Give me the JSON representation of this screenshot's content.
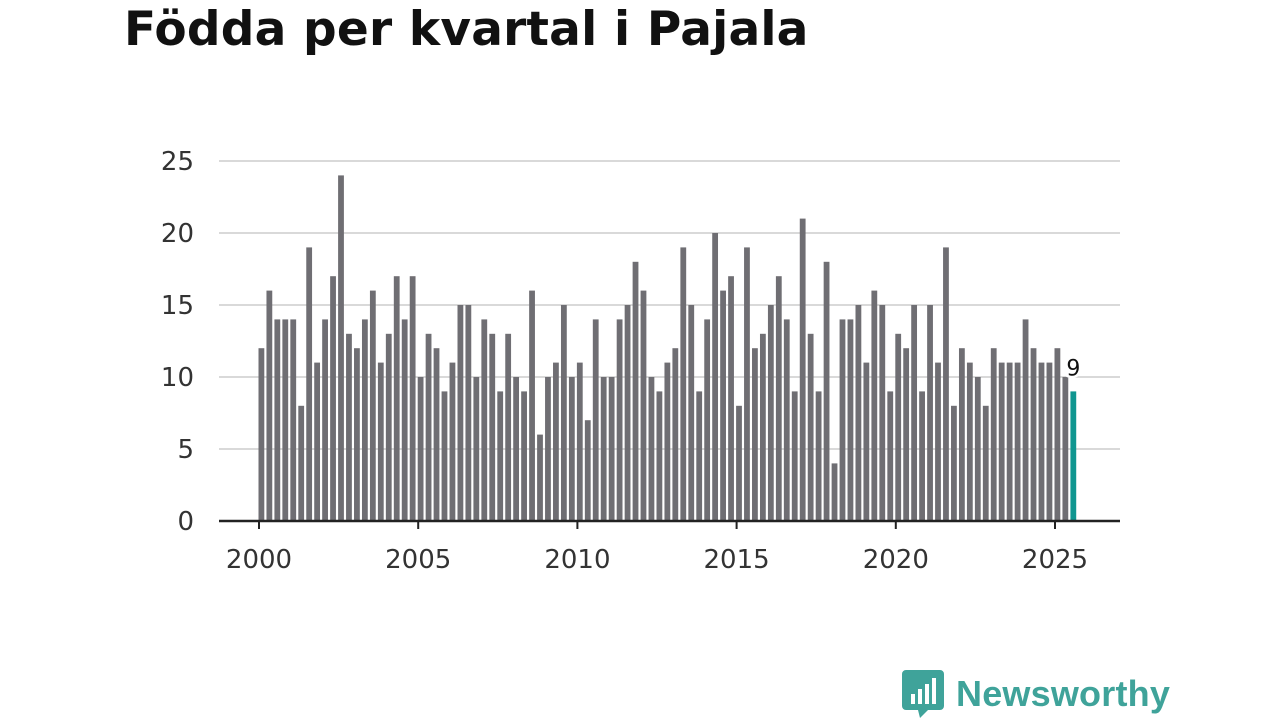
{
  "title": "Födda per kvartal i Pajala",
  "brand": {
    "name": "Newsworthy",
    "icon": "newsworthy-logo-icon",
    "color": "#3fa39a"
  },
  "colors": {
    "bar": "#6f6e73",
    "highlight": "#0f9690",
    "grid": "#d9d9d9",
    "axis": "#222222"
  },
  "chart_data": {
    "type": "bar",
    "title": "Födda per kvartal i Pajala",
    "xlabel": "",
    "ylabel": "",
    "ylim": [
      0,
      25
    ],
    "yticks": [
      0,
      5,
      10,
      15,
      20,
      25
    ],
    "xticks": [
      2000,
      2005,
      2010,
      2015,
      2020,
      2025
    ],
    "start_year": 2000,
    "periods_per_year": 4,
    "grid": true,
    "values": [
      12,
      16,
      14,
      14,
      14,
      8,
      19,
      11,
      14,
      17,
      24,
      13,
      12,
      14,
      16,
      11,
      13,
      17,
      14,
      17,
      10,
      13,
      12,
      9,
      11,
      15,
      15,
      10,
      14,
      13,
      9,
      13,
      10,
      9,
      16,
      6,
      10,
      11,
      15,
      10,
      11,
      7,
      14,
      10,
      10,
      14,
      15,
      18,
      16,
      10,
      9,
      11,
      12,
      19,
      15,
      9,
      14,
      20,
      16,
      17,
      8,
      19,
      12,
      13,
      15,
      17,
      14,
      9,
      21,
      13,
      9,
      18,
      4,
      14,
      14,
      15,
      11,
      16,
      15,
      9,
      13,
      12,
      15,
      9,
      15,
      11,
      19,
      8,
      12,
      11,
      10,
      8,
      12,
      11,
      11,
      11,
      14,
      12,
      11,
      11,
      12,
      10,
      9
    ],
    "highlight_index": 102,
    "data_label": "9"
  }
}
